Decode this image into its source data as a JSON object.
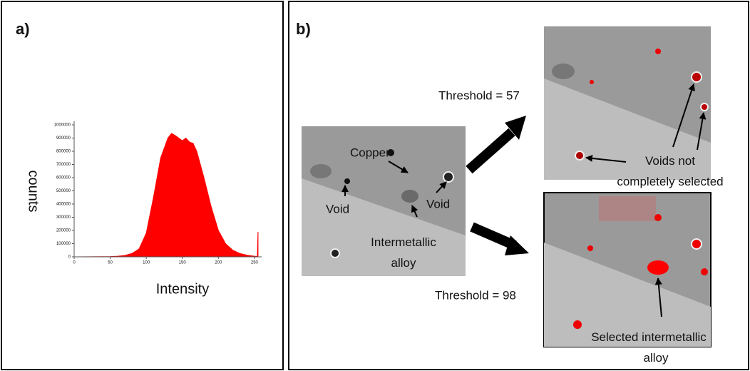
{
  "panels": {
    "a": "a)",
    "b": "b)"
  },
  "chart_data": {
    "type": "area",
    "xlabel": "Intensity",
    "ylabel": "counts",
    "color": "#ff0000",
    "x": [
      0,
      50,
      60,
      70,
      80,
      90,
      100,
      110,
      120,
      130,
      135,
      140,
      150,
      155,
      160,
      165,
      170,
      180,
      190,
      200,
      210,
      220,
      230,
      240,
      250,
      254,
      255
    ],
    "values": [
      0,
      2000,
      5000,
      10000,
      25000,
      60000,
      180000,
      450000,
      750000,
      900000,
      935000,
      920000,
      880000,
      900000,
      870000,
      860000,
      800000,
      600000,
      380000,
      200000,
      100000,
      50000,
      25000,
      12000,
      5000,
      3000,
      190000
    ],
    "xlim": [
      0,
      260
    ],
    "xticks": [
      0,
      50,
      100,
      150,
      200,
      250
    ],
    "ylim": [
      0,
      1000000
    ],
    "yticks": [
      0,
      100000,
      200000,
      300000,
      400000,
      500000,
      600000,
      700000,
      800000,
      900000,
      1000000
    ]
  },
  "annotations": {
    "copper": "Copper",
    "void_left": "Void",
    "void_right": "Void",
    "intermetallic": [
      "Intermetallic",
      "alloy"
    ],
    "threshold_top": "Threshold = 57",
    "threshold_bottom": "Threshold = 98",
    "voids_not_selected": [
      "Voids not",
      "completely selected"
    ],
    "selected_intermetallic": [
      "Selected intermetallic",
      "alloy"
    ]
  }
}
